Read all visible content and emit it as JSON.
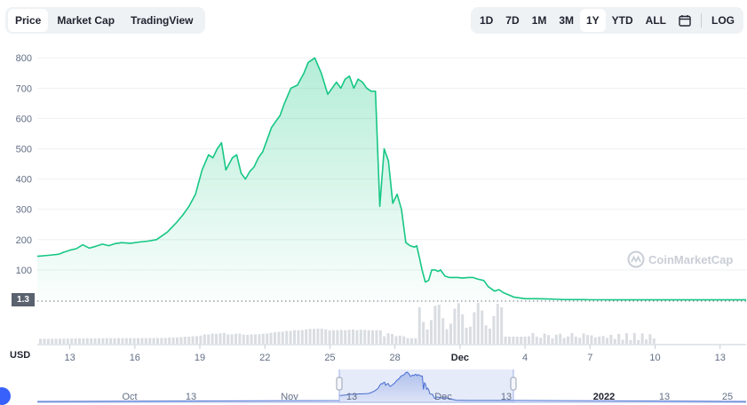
{
  "tabs": [
    {
      "label": "Price",
      "active": true
    },
    {
      "label": "Market Cap",
      "active": false
    },
    {
      "label": "TradingView",
      "active": false
    }
  ],
  "ranges": [
    {
      "label": "1D",
      "active": false
    },
    {
      "label": "7D",
      "active": false
    },
    {
      "label": "1M",
      "active": false
    },
    {
      "label": "3M",
      "active": false
    },
    {
      "label": "1Y",
      "active": true
    },
    {
      "label": "YTD",
      "active": false
    },
    {
      "label": "ALL",
      "active": false
    }
  ],
  "log_label": "LOG",
  "calendar_icon": "calendar-icon",
  "watermark": "CoinMarketCap",
  "current_price_tag": "1.3",
  "currency": "USD",
  "colors": {
    "line": "#16c784",
    "volume": "#d9dde2",
    "navigator": "#4a6fd1"
  },
  "chart_data": {
    "type": "area",
    "yticks": [
      100,
      200,
      300,
      400,
      500,
      600,
      700,
      800
    ],
    "ylim": [
      0,
      830
    ],
    "xticks": [
      {
        "label": "13",
        "x": 0
      },
      {
        "label": "16",
        "x": 3
      },
      {
        "label": "19",
        "x": 6
      },
      {
        "label": "22",
        "x": 9
      },
      {
        "label": "25",
        "x": 12
      },
      {
        "label": "28",
        "x": 15
      },
      {
        "label": "Dec",
        "x": 18
      },
      {
        "label": "4",
        "x": 21
      },
      {
        "label": "7",
        "x": 24
      },
      {
        "label": "10",
        "x": 27
      },
      {
        "label": "13",
        "x": 30
      }
    ],
    "xlim": [
      -1.5,
      31.2
    ],
    "series": [
      {
        "x": [
          -1.5,
          -1.0,
          -0.5,
          -0.3,
          0.0,
          0.3,
          0.6,
          0.9,
          1.2,
          1.5,
          1.8,
          2.1,
          2.4,
          2.8,
          3.2,
          3.6,
          4.0,
          4.5,
          4.9,
          5.2,
          5.5,
          5.8,
          6.1,
          6.4,
          6.6,
          6.8,
          7.0,
          7.2,
          7.5,
          7.7,
          7.9,
          8.1,
          8.3,
          8.5,
          8.7,
          8.9,
          9.1,
          9.3,
          9.5,
          9.7,
          9.9,
          10.2,
          10.5,
          10.8,
          11.0,
          11.3,
          11.6,
          11.9,
          12.1,
          12.3,
          12.5,
          12.7,
          12.9,
          13.1,
          13.3,
          13.5,
          13.7,
          13.9,
          14.1,
          14.3,
          14.5,
          14.7,
          14.9,
          15.1,
          15.3,
          15.5,
          15.7,
          15.9,
          16.0,
          16.1,
          16.25,
          16.4,
          16.55,
          16.7,
          16.85,
          17.0,
          17.1,
          17.3,
          17.5,
          17.7,
          17.9,
          18.1,
          18.4,
          18.6,
          18.8,
          19.1,
          19.3,
          19.6,
          19.8,
          20.0,
          20.5,
          21.0,
          21.5,
          22.0,
          22.5,
          22.8,
          23.1,
          23.4,
          23.7,
          24.0,
          24.3,
          24.6,
          24.9,
          25.2,
          25.5,
          26.0,
          26.5,
          27.0,
          28.0,
          29.0,
          30.0,
          31.2
        ],
        "y": [
          145,
          148,
          152,
          158,
          165,
          170,
          183,
          172,
          178,
          185,
          180,
          187,
          190,
          188,
          192,
          195,
          200,
          225,
          255,
          280,
          310,
          350,
          430,
          480,
          470,
          500,
          520,
          430,
          470,
          480,
          420,
          400,
          425,
          440,
          470,
          490,
          530,
          570,
          590,
          610,
          650,
          700,
          710,
          750,
          785,
          800,
          750,
          680,
          700,
          720,
          700,
          730,
          740,
          700,
          730,
          720,
          700,
          690,
          690,
          310,
          500,
          460,
          320,
          350,
          300,
          190,
          180,
          175,
          180,
          150,
          100,
          60,
          65,
          100,
          100,
          95,
          100,
          80,
          75,
          75,
          75,
          73,
          75,
          75,
          70,
          65,
          45,
          30,
          35,
          25,
          10,
          5,
          5,
          4,
          3,
          2,
          2,
          2,
          2,
          1.5,
          1.5,
          1.5,
          1.3,
          1.3,
          1.3,
          1.3,
          1.3,
          1.3,
          1.3,
          1.3,
          1.3,
          1.3
        ]
      }
    ],
    "volume_note": "volume bars below price",
    "navigator": {
      "labels": [
        "Oct",
        "13",
        "Nov",
        "13",
        "Dec",
        "13",
        "2022",
        "13",
        "25"
      ]
    }
  }
}
